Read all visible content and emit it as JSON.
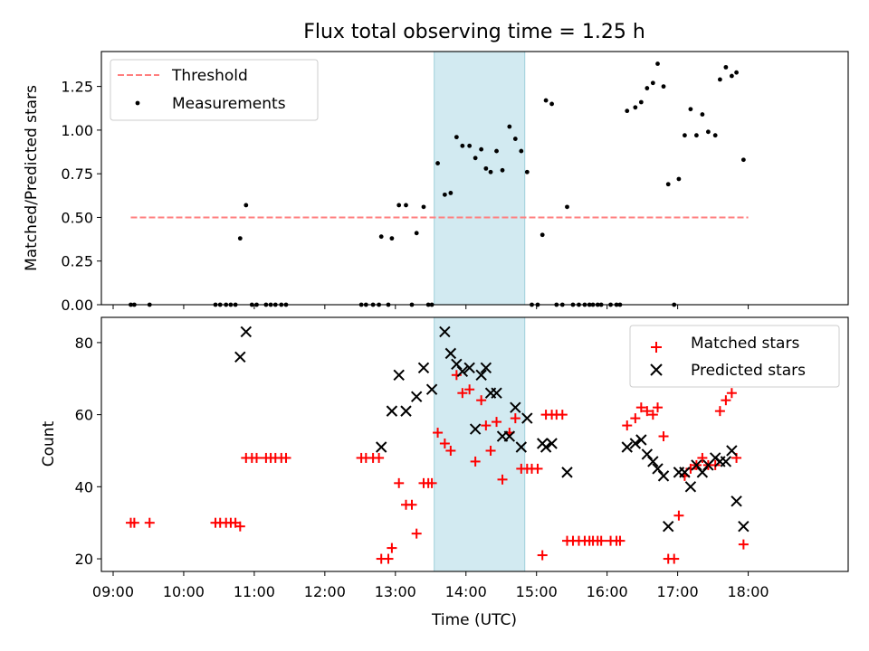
{
  "chart_data": [
    {
      "type": "scatter",
      "title": "Flux total observing time = 1.25 h",
      "xlabel": "",
      "ylabel": "Matched/Predicted stars",
      "xlim": [
        "08:50",
        "19:25"
      ],
      "ylim": [
        0,
        1.45
      ],
      "yticks": [
        "0.00",
        "0.25",
        "0.50",
        "0.75",
        "1.00",
        "1.25"
      ],
      "legend": {
        "placement": "top-left",
        "entries": [
          "Threshold",
          "Measurements"
        ]
      },
      "colors": {
        "threshold": "#ff7f7f",
        "measurements": "#000000",
        "span": "#add8e6"
      },
      "highlight_span": [
        "13:33",
        "14:50"
      ],
      "series": [
        {
          "name": "Threshold",
          "kind": "line",
          "points": [
            [
              "09:15",
              0.5
            ],
            [
              "18:00",
              0.5
            ]
          ]
        },
        {
          "name": "Measurements",
          "kind": "scatter",
          "points": [
            [
              "09:15",
              0
            ],
            [
              "09:18",
              0
            ],
            [
              "09:31",
              0
            ],
            [
              "10:27",
              0
            ],
            [
              "10:31",
              0
            ],
            [
              "10:36",
              0
            ],
            [
              "10:40",
              0
            ],
            [
              "10:44",
              0
            ],
            [
              "10:48",
              0.38
            ],
            [
              "10:53",
              0.57
            ],
            [
              "10:58",
              0
            ],
            [
              "11:02",
              0
            ],
            [
              "11:10",
              0
            ],
            [
              "11:14",
              0
            ],
            [
              "11:18",
              0
            ],
            [
              "11:23",
              0
            ],
            [
              "11:27",
              0
            ],
            [
              "12:31",
              0
            ],
            [
              "12:35",
              0
            ],
            [
              "12:41",
              0
            ],
            [
              "12:46",
              0
            ],
            [
              "12:48",
              0.39
            ],
            [
              "12:54",
              0
            ],
            [
              "12:57",
              0.38
            ],
            [
              "13:03",
              0.57
            ],
            [
              "13:09",
              0.57
            ],
            [
              "13:14",
              0
            ],
            [
              "13:18",
              0.41
            ],
            [
              "13:24",
              0.56
            ],
            [
              "13:28",
              0
            ],
            [
              "13:31",
              0
            ],
            [
              "13:36",
              0.81
            ],
            [
              "13:42",
              0.63
            ],
            [
              "13:47",
              0.64
            ],
            [
              "13:52",
              0.96
            ],
            [
              "13:57",
              0.91
            ],
            [
              "14:03",
              0.91
            ],
            [
              "14:08",
              0.84
            ],
            [
              "14:13",
              0.89
            ],
            [
              "14:17",
              0.78
            ],
            [
              "14:21",
              0.76
            ],
            [
              "14:26",
              0.88
            ],
            [
              "14:31",
              0.77
            ],
            [
              "14:37",
              1.02
            ],
            [
              "14:42",
              0.95
            ],
            [
              "14:47",
              0.88
            ],
            [
              "14:52",
              0.76
            ],
            [
              "14:56",
              0
            ],
            [
              "15:01",
              0
            ],
            [
              "15:05",
              0.4
            ],
            [
              "15:08",
              1.17
            ],
            [
              "15:13",
              1.15
            ],
            [
              "15:17",
              0
            ],
            [
              "15:22",
              0
            ],
            [
              "15:26",
              0.56
            ],
            [
              "15:31",
              0
            ],
            [
              "15:36",
              0
            ],
            [
              "15:41",
              0
            ],
            [
              "15:45",
              0
            ],
            [
              "15:48",
              0
            ],
            [
              "15:52",
              0
            ],
            [
              "15:55",
              0
            ],
            [
              "16:03",
              0
            ],
            [
              "16:08",
              0
            ],
            [
              "16:11",
              0
            ],
            [
              "16:17",
              1.11
            ],
            [
              "16:24",
              1.13
            ],
            [
              "16:29",
              1.16
            ],
            [
              "16:34",
              1.24
            ],
            [
              "16:39",
              1.27
            ],
            [
              "16:43",
              1.38
            ],
            [
              "16:48",
              1.25
            ],
            [
              "16:52",
              0.69
            ],
            [
              "16:57",
              0
            ],
            [
              "17:01",
              0.72
            ],
            [
              "17:06",
              0.97
            ],
            [
              "17:11",
              1.12
            ],
            [
              "17:16",
              0.97
            ],
            [
              "17:21",
              1.09
            ],
            [
              "17:26",
              0.99
            ],
            [
              "17:32",
              0.97
            ],
            [
              "17:36",
              1.29
            ],
            [
              "17:41",
              1.36
            ],
            [
              "17:46",
              1.31
            ],
            [
              "17:50",
              1.33
            ],
            [
              "17:56",
              0.83
            ]
          ]
        }
      ]
    },
    {
      "type": "scatter",
      "title": "",
      "xlabel": "Time (UTC)",
      "ylabel": "Count",
      "xlim": [
        "08:50",
        "19:25"
      ],
      "ylim": [
        16.5,
        87
      ],
      "xticks": [
        "09:00",
        "10:00",
        "11:00",
        "12:00",
        "13:00",
        "14:00",
        "15:00",
        "16:00",
        "17:00",
        "18:00"
      ],
      "yticks": [
        "20",
        "40",
        "60",
        "80"
      ],
      "legend": {
        "placement": "top-right",
        "entries": [
          "Matched stars",
          "Predicted stars"
        ]
      },
      "colors": {
        "matched": "#ff0000",
        "predicted": "#000000",
        "span": "#add8e6"
      },
      "highlight_span": [
        "13:33",
        "14:50"
      ],
      "series": [
        {
          "name": "Matched stars",
          "marker": "plus",
          "points": [
            [
              "09:15",
              30
            ],
            [
              "09:18",
              30
            ],
            [
              "09:31",
              30
            ],
            [
              "10:27",
              30
            ],
            [
              "10:31",
              30
            ],
            [
              "10:36",
              30
            ],
            [
              "10:40",
              30
            ],
            [
              "10:44",
              30
            ],
            [
              "10:48",
              29
            ],
            [
              "10:53",
              48
            ],
            [
              "10:58",
              48
            ],
            [
              "11:02",
              48
            ],
            [
              "11:10",
              48
            ],
            [
              "11:14",
              48
            ],
            [
              "11:18",
              48
            ],
            [
              "11:23",
              48
            ],
            [
              "11:27",
              48
            ],
            [
              "12:31",
              48
            ],
            [
              "12:35",
              48
            ],
            [
              "12:41",
              48
            ],
            [
              "12:46",
              48
            ],
            [
              "12:48",
              20
            ],
            [
              "12:54",
              20
            ],
            [
              "12:57",
              23
            ],
            [
              "13:03",
              41
            ],
            [
              "13:09",
              35
            ],
            [
              "13:14",
              35
            ],
            [
              "13:18",
              27
            ],
            [
              "13:24",
              41
            ],
            [
              "13:28",
              41
            ],
            [
              "13:31",
              41
            ],
            [
              "13:36",
              55
            ],
            [
              "13:42",
              52
            ],
            [
              "13:47",
              50
            ],
            [
              "13:52",
              71
            ],
            [
              "13:57",
              66
            ],
            [
              "14:03",
              67
            ],
            [
              "14:08",
              47
            ],
            [
              "14:13",
              64
            ],
            [
              "14:17",
              57
            ],
            [
              "14:21",
              50
            ],
            [
              "14:26",
              58
            ],
            [
              "14:31",
              42
            ],
            [
              "14:37",
              55
            ],
            [
              "14:42",
              59
            ],
            [
              "14:47",
              45
            ],
            [
              "14:52",
              45
            ],
            [
              "14:56",
              45
            ],
            [
              "15:01",
              45
            ],
            [
              "15:05",
              21
            ],
            [
              "15:08",
              60
            ],
            [
              "15:13",
              60
            ],
            [
              "15:17",
              60
            ],
            [
              "15:22",
              60
            ],
            [
              "15:26",
              25
            ],
            [
              "15:31",
              25
            ],
            [
              "15:36",
              25
            ],
            [
              "15:41",
              25
            ],
            [
              "15:45",
              25
            ],
            [
              "15:48",
              25
            ],
            [
              "15:52",
              25
            ],
            [
              "15:55",
              25
            ],
            [
              "16:03",
              25
            ],
            [
              "16:08",
              25
            ],
            [
              "16:11",
              25
            ],
            [
              "16:17",
              57
            ],
            [
              "16:24",
              59
            ],
            [
              "16:29",
              62
            ],
            [
              "16:34",
              61
            ],
            [
              "16:39",
              60
            ],
            [
              "16:43",
              62
            ],
            [
              "16:48",
              54
            ],
            [
              "16:52",
              20
            ],
            [
              "16:57",
              20
            ],
            [
              "17:01",
              32
            ],
            [
              "17:06",
              43
            ],
            [
              "17:11",
              45
            ],
            [
              "17:16",
              46
            ],
            [
              "17:21",
              48
            ],
            [
              "17:26",
              46
            ],
            [
              "17:32",
              46
            ],
            [
              "17:36",
              61
            ],
            [
              "17:41",
              64
            ],
            [
              "17:46",
              66
            ],
            [
              "17:50",
              48
            ],
            [
              "17:56",
              24
            ]
          ]
        },
        {
          "name": "Predicted stars",
          "marker": "x",
          "points": [
            [
              "10:48",
              76
            ],
            [
              "10:53",
              83
            ],
            [
              "12:48",
              51
            ],
            [
              "12:57",
              61
            ],
            [
              "13:03",
              71
            ],
            [
              "13:09",
              61
            ],
            [
              "13:18",
              65
            ],
            [
              "13:24",
              73
            ],
            [
              "13:31",
              67
            ],
            [
              "13:42",
              83
            ],
            [
              "13:47",
              77
            ],
            [
              "13:52",
              74
            ],
            [
              "13:57",
              72
            ],
            [
              "14:03",
              73
            ],
            [
              "14:08",
              56
            ],
            [
              "14:13",
              71
            ],
            [
              "14:17",
              73
            ],
            [
              "14:21",
              66
            ],
            [
              "14:26",
              66
            ],
            [
              "14:31",
              54
            ],
            [
              "14:37",
              54
            ],
            [
              "14:42",
              62
            ],
            [
              "14:47",
              51
            ],
            [
              "14:52",
              59
            ],
            [
              "15:05",
              52
            ],
            [
              "15:08",
              51
            ],
            [
              "15:13",
              52
            ],
            [
              "15:26",
              44
            ],
            [
              "16:17",
              51
            ],
            [
              "16:24",
              52
            ],
            [
              "16:29",
              53
            ],
            [
              "16:34",
              49
            ],
            [
              "16:39",
              47
            ],
            [
              "16:43",
              45
            ],
            [
              "16:48",
              43
            ],
            [
              "16:52",
              29
            ],
            [
              "17:01",
              44
            ],
            [
              "17:06",
              44
            ],
            [
              "17:11",
              40
            ],
            [
              "17:16",
              46
            ],
            [
              "17:21",
              44
            ],
            [
              "17:26",
              46
            ],
            [
              "17:32",
              48
            ],
            [
              "17:36",
              47
            ],
            [
              "17:41",
              47
            ],
            [
              "17:46",
              50
            ],
            [
              "17:50",
              36
            ],
            [
              "17:56",
              29
            ]
          ]
        }
      ]
    }
  ]
}
